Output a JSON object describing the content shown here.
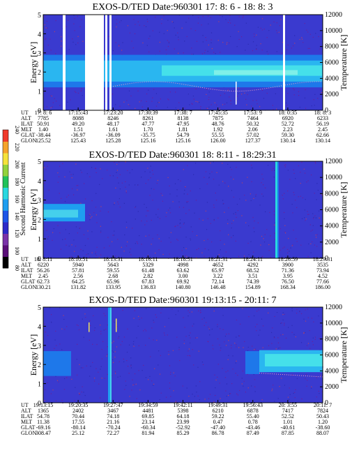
{
  "colorbar": {
    "label": "Second Harmonic Current",
    "ticks": [
      "240",
      "220",
      "200",
      "180",
      "160",
      "140",
      "120",
      "100",
      "80"
    ],
    "colors": [
      "#000000",
      "#5a0f78",
      "#7a33a8",
      "#2d2ac8",
      "#1e56e8",
      "#1e9ef0",
      "#29d8e0",
      "#22c25a",
      "#92d23c",
      "#f5e23a",
      "#f5a32a",
      "#f03a2a"
    ]
  },
  "chart_data": [
    {
      "type": "heatmap",
      "title": "EXOS-D/TED   Date:960301  17: 8: 6 - 18: 8: 3",
      "ylabel": "Energy [eV]",
      "y2label": "Temperature [K]",
      "ylim": [
        0,
        5
      ],
      "y2lim": [
        0,
        12000
      ],
      "yticks": [
        "0",
        "1",
        "2",
        "3",
        "4",
        "5"
      ],
      "y2ticks": [
        "0",
        "2000",
        "4000",
        "6000",
        "8000",
        "10000",
        "12000"
      ],
      "rows": [
        "UT",
        "ALT",
        "ILAT",
        "MLT",
        "GLAT",
        "GLON"
      ],
      "cols": [
        [
          "17: 8: 6",
          "17:15:43",
          "17:23:20",
          "17:30:39",
          "17:38: 7",
          "17:45:35",
          "17:53: 9",
          "18: 0:35",
          "18: 8: 3"
        ],
        [
          "7785",
          "8088",
          "8246",
          "8261",
          "8138",
          "7875",
          "7464",
          "6920",
          "6233"
        ],
        [
          "50.91",
          "49.20",
          "48.17",
          "47.77",
          "47.95",
          "48.76",
          "50.32",
          "52.72",
          "56.19"
        ],
        [
          "1.40",
          "1.51",
          "1.61",
          "1.70",
          "1.81",
          "1.92",
          "2.06",
          "2.23",
          "2.45"
        ],
        [
          "-38.44",
          "-36.97",
          "-36.09",
          "-35.75",
          "54.79",
          "55.55",
          "57.02",
          "59.30",
          "62.66"
        ],
        [
          "125.52",
          "125.43",
          "125.28",
          "125.16",
          "125.16",
          "126.00",
          "127.37",
          "130.14",
          "130.14"
        ]
      ]
    },
    {
      "type": "heatmap",
      "title": "EXOS-D/TED   Date:960301  18: 8:11 - 18:29:31",
      "ylabel": "Energy [eV]",
      "y2label": "Temperature [K]",
      "ylim": [
        0,
        5
      ],
      "y2lim": [
        0,
        12000
      ],
      "yticks": [
        "0",
        "1",
        "2",
        "3",
        "4",
        "5"
      ],
      "y2ticks": [
        "0",
        "2000",
        "4000",
        "6000",
        "8000",
        "10000",
        "12000"
      ],
      "rows": [
        "UT",
        "ALT",
        "ILAT",
        "MLT",
        "GLAT",
        "GLON"
      ],
      "cols": [
        [
          "18: 8:11",
          "18:10:51",
          "18:13:31",
          "18:16:11",
          "18:18:51",
          "18:21:31",
          "18:24:11",
          "18:26:59",
          "18:29:31"
        ],
        [
          "6220",
          "5940",
          "5643",
          "5329",
          "4998",
          "4652",
          "4292",
          "3900",
          "3535"
        ],
        [
          "56.26",
          "57.81",
          "59.55",
          "61.48",
          "63.62",
          "65.97",
          "68.52",
          "71.36",
          "73.94"
        ],
        [
          "2.45",
          "2.56",
          "2.68",
          "2.82",
          "3.00",
          "3.22",
          "3.51",
          "3.95",
          "4.52"
        ],
        [
          "62.73",
          "64.25",
          "65.96",
          "67.83",
          "69.92",
          "72.14",
          "74.39",
          "76.50",
          "77.66"
        ],
        [
          "130.21",
          "131.82",
          "133.95",
          "136.83",
          "140.80",
          "146.48",
          "154.89",
          "168.34",
          "186.00"
        ]
      ]
    },
    {
      "type": "heatmap",
      "title": "EXOS-D/TED   Date:960301  19:13:15 - 20:11: 7",
      "ylabel": "Energy [eV]",
      "y2label": "Temperature [K]",
      "ylim": [
        0,
        5
      ],
      "y2lim": [
        0,
        12000
      ],
      "yticks": [
        "0",
        "1",
        "2",
        "3",
        "4",
        "5"
      ],
      "y2ticks": [
        "0",
        "2000",
        "4000",
        "6000",
        "8000",
        "10000",
        "12000"
      ],
      "rows": [
        "UT",
        "ALT",
        "ILAT",
        "MLT",
        "GLAT",
        "GLON"
      ],
      "cols": [
        [
          "19:13:15",
          "19:20:35",
          "19:27:47",
          "19:34:59",
          "19:42:11",
          "19:49:31",
          "19:56:43",
          "20: 3:55",
          "20:11: 7"
        ],
        [
          "1365",
          "2402",
          "3467",
          "4481",
          "5398",
          "6210",
          "6878",
          "7417",
          "7824"
        ],
        [
          "54.78",
          "70.44",
          "74.18",
          "69.85",
          "64.18",
          "59.22",
          "55.40",
          "52.52",
          "50.43"
        ],
        [
          "11.38",
          "17.55",
          "21.16",
          "23.14",
          "23.99",
          "0.47",
          "0.78",
          "1.01",
          "1.20"
        ],
        [
          "-69.16",
          "-80.14",
          "-70.24",
          "-60.34",
          "-52.92",
          "-47.40",
          "-43.46",
          "-40.61",
          "-38.60"
        ],
        [
          "308.47",
          "25.12",
          "72.27",
          "81.94",
          "85.29",
          "86.78",
          "87.49",
          "87.85",
          "88.07"
        ]
      ]
    }
  ]
}
